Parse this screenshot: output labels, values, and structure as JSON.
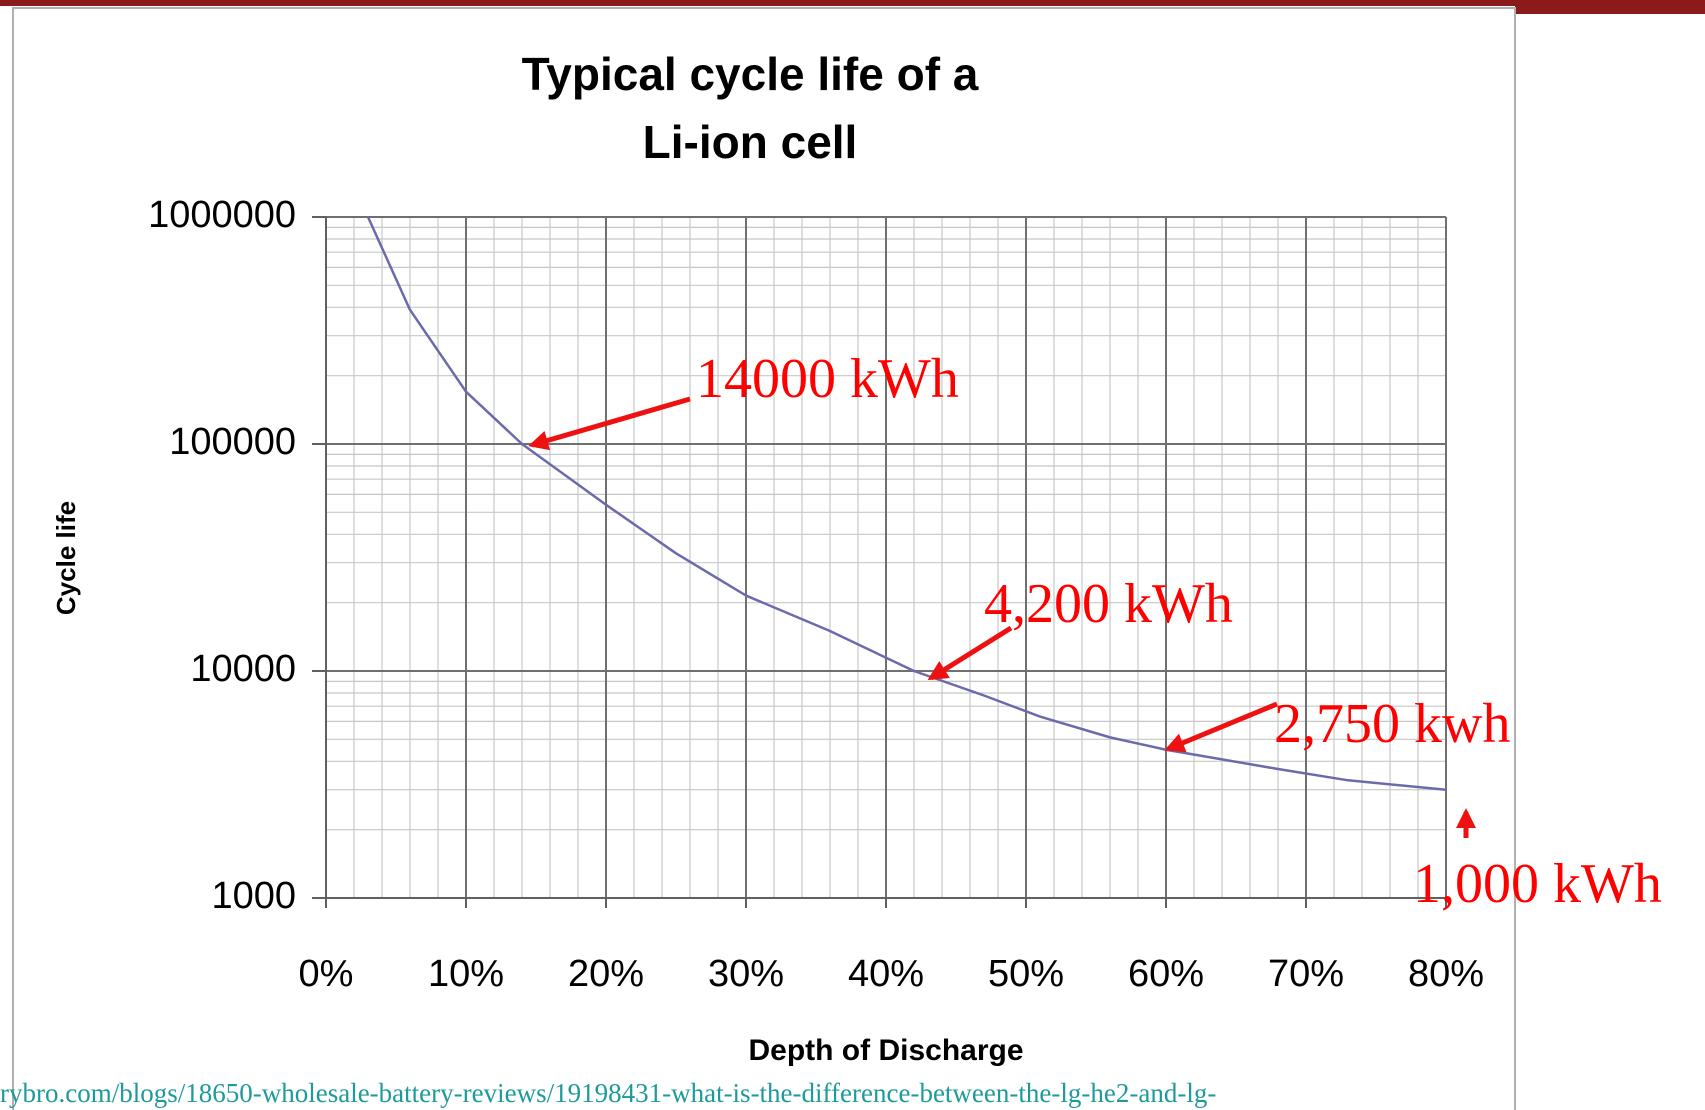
{
  "chart_data": {
    "type": "line",
    "title": [
      "Typical  cycle life of a",
      "Li-ion cell"
    ],
    "x_label": "Depth of Discharge",
    "y_label": "Cycle life",
    "x": [
      3,
      6,
      10,
      14,
      20,
      25,
      30,
      36,
      42,
      47,
      51,
      56,
      60,
      68,
      73,
      80
    ],
    "values": [
      1000000,
      390000,
      170000,
      100000,
      54000,
      33000,
      21500,
      15000,
      10000,
      7800,
      6300,
      5100,
      4500,
      3700,
      3300,
      3000
    ],
    "color": "#6b6bab",
    "xlim": [
      0,
      80
    ],
    "xticks": [
      {
        "value": 0,
        "label": "0%"
      },
      {
        "value": 10,
        "label": "10%"
      },
      {
        "value": 20,
        "label": "20%"
      },
      {
        "value": 30,
        "label": "30%"
      },
      {
        "value": 40,
        "label": "40%"
      },
      {
        "value": 50,
        "label": "50%"
      },
      {
        "value": 60,
        "label": "60%"
      },
      {
        "value": 70,
        "label": "70%"
      },
      {
        "value": 80,
        "label": "80%"
      }
    ],
    "ylim": [
      1000,
      1000000
    ],
    "yticks": [
      1000,
      10000,
      100000,
      1000000
    ],
    "y_scale": "log",
    "grid": true,
    "minor_grid": true,
    "annotations": [
      "14000 kWh",
      "4,200 kWh",
      "2,750 kwh",
      "1,000 kWh"
    ]
  },
  "source_url": "rybro.com/blogs/18650-wholesale-battery-reviews/19198431-what-is-the-difference-between-the-lg-he2-and-lg-"
}
